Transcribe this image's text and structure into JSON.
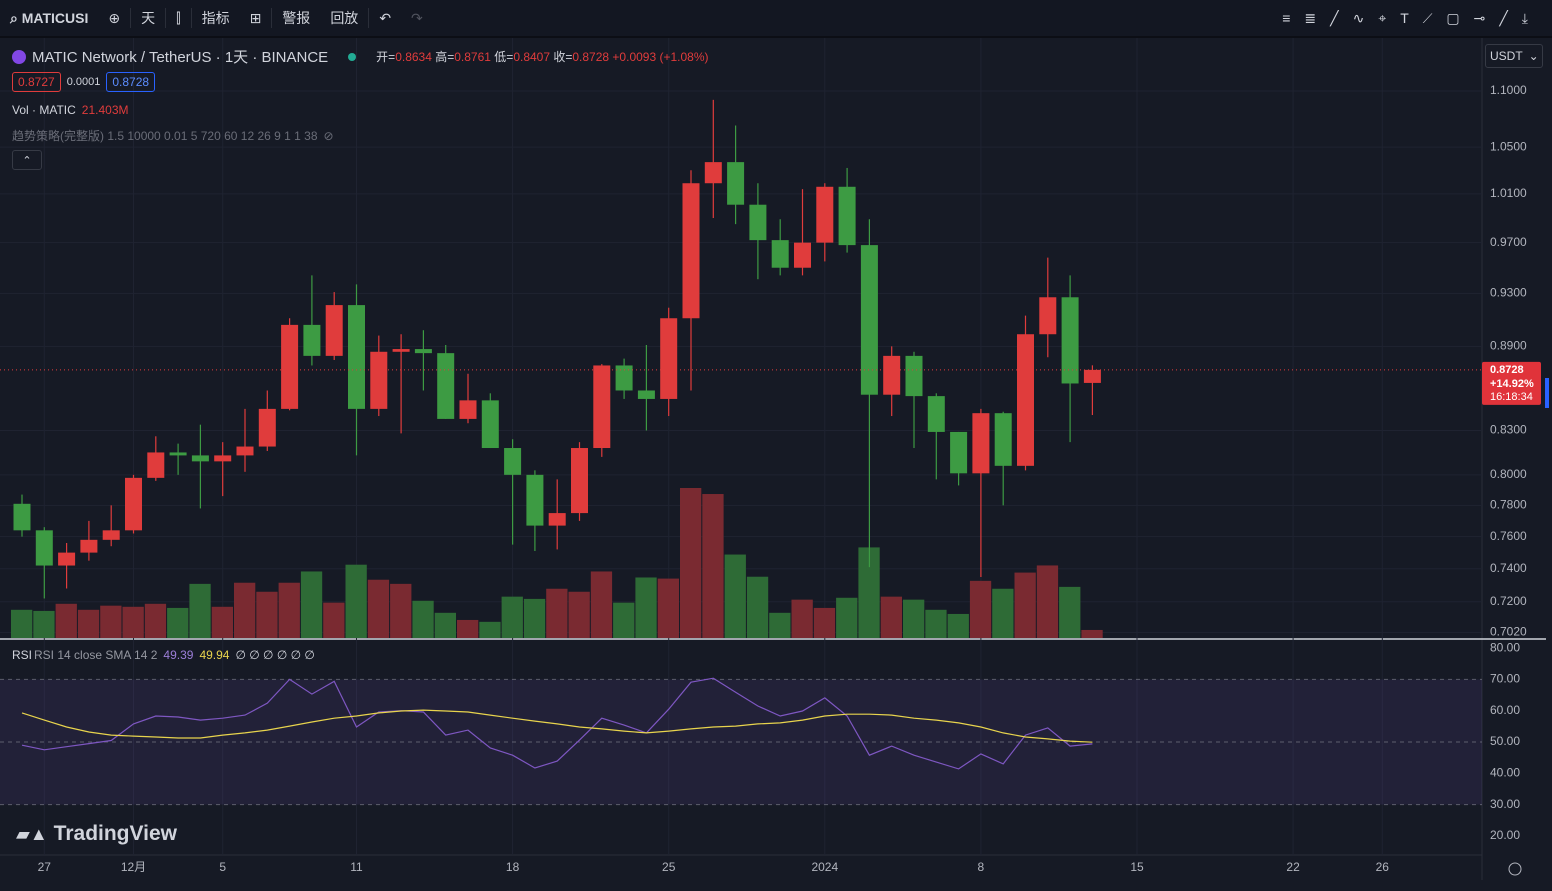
{
  "toolbar": {
    "symbol": "MATICUSI",
    "interval": "天",
    "indicators": "指标",
    "alerts": "警报",
    "replay": "回放"
  },
  "legend": {
    "symbol_title": "MATIC Network / TetherUS · 1天 · BINANCE",
    "open_label": "开=",
    "high_label": "高=",
    "low_label": "低=",
    "close_label": "收=",
    "change": "+0.0093 (+1.08%)",
    "bid": "0.8727",
    "spread": "0.0001",
    "ask": "0.8728",
    "volume_title": "Vol · MATIC",
    "volume_value": "21.403M",
    "strategy": "趋势策略(完整版) 1.5 10000 0.01 5 720 60 12 26 9 1 1 38",
    "rsi_title": "RSI 14 close SMA 14 2",
    "rsi_tail": "∅ ∅ ∅ ∅ ∅ ∅"
  },
  "price_tag": {
    "change_pct": "+14.92%",
    "countdown": "16:18:34"
  },
  "currency": "USDT",
  "watermark": "TradingView",
  "chart_data": [
    {
      "type": "candlestick",
      "log_scale": true,
      "grid": true,
      "up_color": "#e03c3c",
      "down_color": "#3d9b43",
      "up_volume_color": "#7a2a31",
      "down_volume_color": "#2e6b36",
      "categories": [
        null,
        "27",
        null,
        null,
        null,
        "12月",
        null,
        null,
        null,
        "5",
        null,
        null,
        null,
        null,
        null,
        "11",
        null,
        null,
        null,
        null,
        null,
        null,
        "18",
        null,
        null,
        null,
        null,
        null,
        null,
        "25",
        null,
        null,
        null,
        null,
        null,
        null,
        "2024",
        null,
        null,
        null,
        null,
        null,
        null,
        "8",
        null,
        null,
        null,
        null,
        null,
        null,
        "15",
        null,
        null,
        null,
        null,
        null,
        null,
        "22",
        null,
        null,
        null,
        "26"
      ],
      "open": [
        0.781,
        0.764,
        0.742,
        0.75,
        0.758,
        0.764,
        0.798,
        0.815,
        0.813,
        0.809,
        0.813,
        0.819,
        0.845,
        0.906,
        0.883,
        0.921,
        0.845,
        0.886,
        0.888,
        0.885,
        0.838,
        0.851,
        0.818,
        0.8,
        0.767,
        0.775,
        0.818,
        0.876,
        0.858,
        0.852,
        0.911,
        1.019,
        1.037,
        1.001,
        0.972,
        0.95,
        0.97,
        1.016,
        0.968,
        0.855,
        0.883,
        0.854,
        0.829,
        0.801,
        0.842,
        0.806,
        0.899,
        0.927,
        0.8634,
        null,
        null,
        null,
        null,
        null,
        null,
        null,
        null,
        null,
        null,
        null,
        null,
        null
      ],
      "high": [
        0.787,
        0.766,
        0.756,
        0.77,
        0.78,
        0.8,
        0.826,
        0.821,
        0.834,
        0.822,
        0.845,
        0.858,
        0.911,
        0.944,
        0.931,
        0.937,
        0.898,
        0.899,
        0.902,
        0.891,
        0.87,
        0.856,
        0.824,
        0.803,
        0.797,
        0.822,
        0.877,
        0.881,
        0.891,
        0.919,
        1.03,
        1.092,
        1.069,
        1.019,
        0.989,
        1.014,
        1.019,
        1.032,
        0.989,
        0.89,
        0.886,
        0.856,
        0.829,
        0.845,
        0.843,
        0.913,
        0.958,
        0.944,
        0.8761,
        null,
        null,
        null,
        null,
        null,
        null,
        null,
        null,
        null,
        null,
        null,
        null,
        null
      ],
      "low": [
        0.76,
        0.722,
        0.728,
        0.745,
        0.754,
        0.762,
        0.796,
        0.8,
        0.778,
        0.786,
        0.802,
        0.816,
        0.844,
        0.876,
        0.88,
        0.813,
        0.84,
        0.828,
        0.858,
        0.838,
        0.835,
        0.818,
        0.755,
        0.751,
        0.752,
        0.77,
        0.812,
        0.852,
        0.83,
        0.84,
        0.858,
        0.99,
        0.985,
        0.941,
        0.944,
        0.944,
        0.955,
        0.962,
        0.741,
        0.84,
        0.818,
        0.797,
        0.793,
        0.735,
        0.78,
        0.803,
        0.882,
        0.822,
        0.8407,
        null,
        null,
        null,
        null,
        null,
        null,
        null,
        null,
        null,
        null,
        null,
        null,
        null
      ],
      "close": [
        0.764,
        0.742,
        0.75,
        0.758,
        0.764,
        0.798,
        0.815,
        0.813,
        0.809,
        0.813,
        0.819,
        0.845,
        0.906,
        0.883,
        0.921,
        0.845,
        0.886,
        0.888,
        0.885,
        0.838,
        0.851,
        0.818,
        0.8,
        0.767,
        0.775,
        0.818,
        0.876,
        0.858,
        0.852,
        0.911,
        1.019,
        1.037,
        1.001,
        0.972,
        0.95,
        0.97,
        1.016,
        0.968,
        0.855,
        0.883,
        0.854,
        0.829,
        0.801,
        0.842,
        0.806,
        0.899,
        0.927,
        0.863,
        0.8728,
        null,
        null,
        null,
        null,
        null,
        null,
        null,
        null,
        null,
        null,
        null,
        null,
        null
      ],
      "volume": [
        75,
        72,
        91,
        75,
        86,
        83,
        91,
        80,
        144,
        83,
        147,
        123,
        147,
        177,
        94,
        195,
        155,
        144,
        99,
        67,
        48,
        43,
        110,
        104,
        131,
        123,
        177,
        94,
        161,
        158,
        399,
        383,
        222,
        163,
        67,
        102,
        80,
        107,
        241,
        110,
        102,
        75,
        64,
        152,
        131,
        174,
        193,
        136,
        21.403,
        null,
        null,
        null,
        null,
        null,
        null,
        null,
        null,
        null,
        null,
        null,
        null,
        null
      ],
      "ylim": [
        0.6987,
        1.1476
      ],
      "yticks": [
        {
          "value": 1.1,
          "label": "1.1000"
        },
        {
          "value": 1.05,
          "label": "1.0500"
        },
        {
          "value": 1.01,
          "label": "1.0100"
        },
        {
          "value": 0.97,
          "label": "0.9700"
        },
        {
          "value": 0.93,
          "label": "0.9300"
        },
        {
          "value": 0.89,
          "label": "0.8900"
        },
        {
          "value": 0.83,
          "label": "0.8300"
        },
        {
          "value": 0.8,
          "label": "0.8000"
        },
        {
          "value": 0.78,
          "label": "0.7800"
        },
        {
          "value": 0.76,
          "label": "0.7600"
        },
        {
          "value": 0.74,
          "label": "0.7400"
        },
        {
          "value": 0.72,
          "label": "0.7200"
        },
        {
          "value": 0.702,
          "label": "0.7020"
        }
      ]
    },
    {
      "type": "line",
      "levels": [
        70,
        50,
        30
      ],
      "band_color": "#7e57c2",
      "series": [
        {
          "name": "RSI",
          "color": "#7e57c2",
          "values": [
            49,
            47.5,
            48.5,
            49.5,
            50.5,
            55.8,
            58.3,
            58,
            57,
            57.6,
            58.6,
            62.4,
            70,
            65.3,
            69.4,
            54.8,
            59.6,
            60,
            59.6,
            52.2,
            53.8,
            48.1,
            45.8,
            41.7,
            43.9,
            50.6,
            57.6,
            55.4,
            52.9,
            60.5,
            69.1,
            70.4,
            65.9,
            61.5,
            58.3,
            59.9,
            64.1,
            58.3,
            45.8,
            48.7,
            45.8,
            43.6,
            41.4,
            46.2,
            43,
            52.2,
            54.5,
            48.7,
            49.39,
            null,
            null,
            null,
            null,
            null,
            null,
            null,
            null,
            null,
            null,
            null,
            null,
            null
          ]
        },
        {
          "name": "SMA",
          "color": "#e8d44d",
          "values": [
            59.3,
            57,
            54.8,
            53.2,
            52.2,
            51.9,
            51.6,
            51.3,
            51.3,
            52.2,
            52.9,
            53.8,
            55.1,
            56.4,
            57.6,
            58.3,
            59.3,
            59.9,
            60.2,
            59.9,
            59.6,
            58.6,
            57.6,
            56.7,
            55.8,
            54.8,
            54.2,
            53.5,
            52.9,
            53.5,
            54.2,
            54.8,
            55.1,
            55.8,
            56.1,
            57,
            58.3,
            58.9,
            58.9,
            58.6,
            57.6,
            57,
            56.1,
            54.8,
            52.9,
            51.6,
            51,
            50.3,
            49.94,
            null,
            null,
            null,
            null,
            null,
            null,
            null,
            null,
            null,
            null,
            null,
            null,
            null
          ]
        }
      ],
      "ylim": [
        13.9,
        82.6
      ],
      "yticks": [
        {
          "value": 80,
          "label": "80.00"
        },
        {
          "value": 70,
          "label": "70.00"
        },
        {
          "value": 60,
          "label": "60.00"
        },
        {
          "value": 50,
          "label": "50.00"
        },
        {
          "value": 40,
          "label": "40.00"
        },
        {
          "value": 30,
          "label": "30.00"
        },
        {
          "value": 20,
          "label": "20.00"
        }
      ]
    }
  ]
}
